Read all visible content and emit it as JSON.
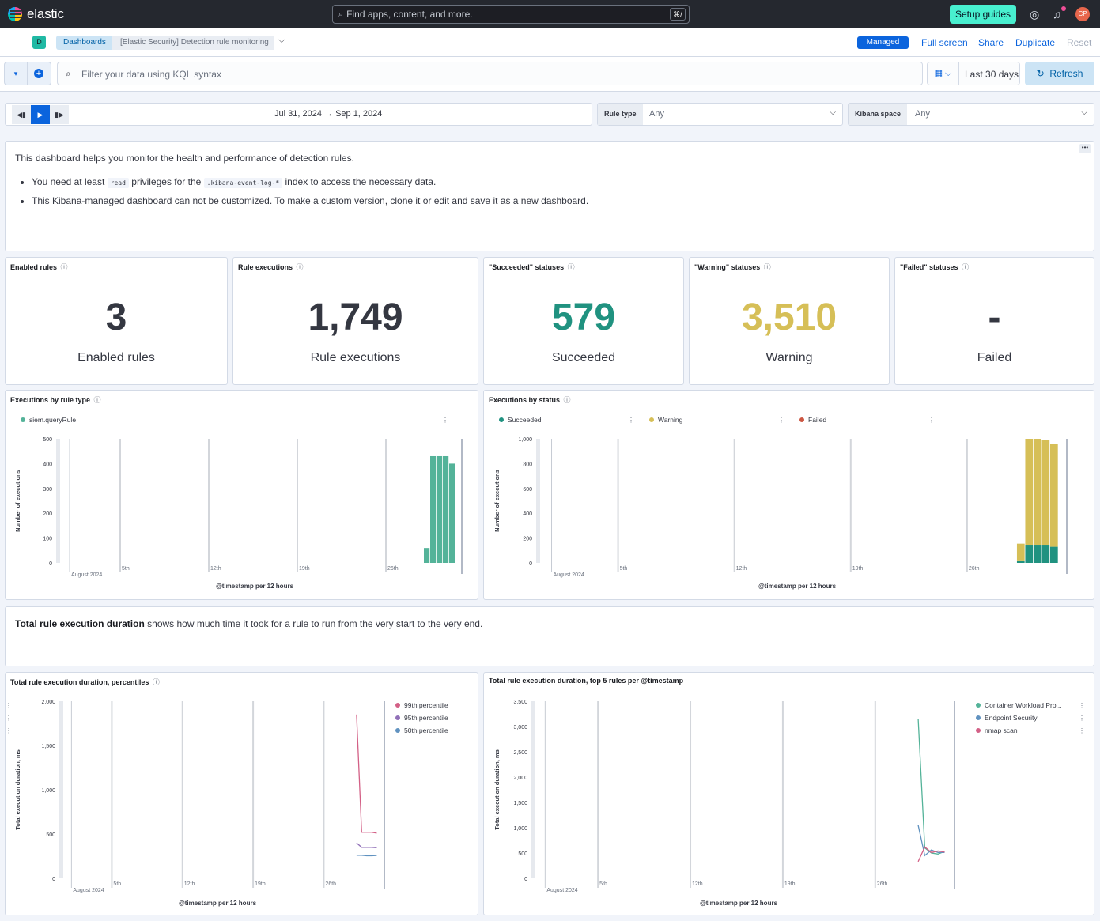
{
  "topbar": {
    "logo_text": "elastic",
    "search_placeholder": "Find apps, content, and more.",
    "search_shortcut": "⌘/",
    "setup_guides": "Setup guides",
    "avatar_initials": "CP"
  },
  "header": {
    "space_initial": "D",
    "breadcrumbs": [
      "Dashboards",
      "[Elastic Security] Detection rule monitoring"
    ],
    "managed_badge": "Managed",
    "actions": [
      "Full screen",
      "Share",
      "Duplicate",
      "Reset"
    ]
  },
  "query": {
    "placeholder": "Filter your data using KQL syntax",
    "date_range": "Last 30 days",
    "refresh": "Refresh"
  },
  "controls": {
    "time_start": "Jul 31, 2024",
    "time_end": "Sep 1, 2024",
    "rule_type_label": "Rule type",
    "rule_type_value": "Any",
    "space_label": "Kibana space",
    "space_value": "Any"
  },
  "intro": {
    "line1": "This dashboard helps you monitor the health and performance of detection rules.",
    "bullet1_pre": "You need at least",
    "bullet1_code1": "read",
    "bullet1_mid": "privileges for the",
    "bullet1_code2": ".kibana-event-log-*",
    "bullet1_post": "index to access the necessary data.",
    "bullet2": "This Kibana-managed dashboard can not be customized. To make a custom version, clone it or edit and save it as a new dashboard."
  },
  "metrics": [
    {
      "title": "Enabled rules",
      "value": "3",
      "label": "Enabled rules",
      "color": "#343741"
    },
    {
      "title": "Rule executions",
      "value": "1,749",
      "label": "Rule executions",
      "color": "#343741"
    },
    {
      "title": "\"Succeeded\" statuses",
      "value": "579",
      "label": "Succeeded",
      "color": "#209280"
    },
    {
      "title": "\"Warning\" statuses",
      "value": "3,510",
      "label": "Warning",
      "color": "#d6bf57"
    },
    {
      "title": "\"Failed\" statuses",
      "value": "-",
      "label": "Failed",
      "color": "#343741"
    }
  ],
  "description": {
    "bold": "Total rule execution duration",
    "rest": "shows how much time it took for a rule to run from the very start to the very end."
  },
  "chart_data": [
    {
      "type": "bar",
      "title": "Executions by rule type",
      "ylabel": "Number of executions",
      "xlabel": "@timestamp per 12 hours",
      "ylim": [
        0,
        500
      ],
      "yticks": [
        "0",
        "100",
        "200",
        "300",
        "400",
        "500"
      ],
      "xticks": [
        "August 2024",
        "5th",
        "12th",
        "19th",
        "26th"
      ],
      "x": [
        "2024-08-29 00:00",
        "2024-08-29 12:00",
        "2024-08-30 00:00",
        "2024-08-30 12:00",
        "2024-08-31 00:00"
      ],
      "series": [
        {
          "name": "siem.queryRule",
          "color": "#54b399",
          "values": [
            60,
            430,
            430,
            430,
            400
          ]
        }
      ]
    },
    {
      "type": "bar",
      "stacked": true,
      "title": "Executions by status",
      "ylabel": "Number of executions",
      "xlabel": "@timestamp per 12 hours",
      "ylim": [
        0,
        1000
      ],
      "yticks": [
        "0",
        "200",
        "400",
        "600",
        "800",
        "1,000"
      ],
      "xticks": [
        "August 2024",
        "5th",
        "12th",
        "19th",
        "26th"
      ],
      "x": [
        "2024-08-29 00:00",
        "2024-08-29 12:00",
        "2024-08-30 00:00",
        "2024-08-30 12:00",
        "2024-08-31 00:00"
      ],
      "series": [
        {
          "name": "Succeeded",
          "color": "#209280",
          "values": [
            20,
            140,
            140,
            140,
            130
          ]
        },
        {
          "name": "Warning",
          "color": "#d6bf57",
          "values": [
            135,
            860,
            860,
            850,
            830
          ]
        },
        {
          "name": "Failed",
          "color": "#cc5642",
          "values": [
            0,
            0,
            0,
            0,
            0
          ]
        }
      ]
    },
    {
      "type": "line",
      "title": "Total rule execution duration, percentiles",
      "ylabel": "Total execution duration, ms",
      "xlabel": "@timestamp per 12 hours",
      "ylim": [
        0,
        2000
      ],
      "yticks": [
        "0",
        "500",
        "1,000",
        "1,500",
        "2,000"
      ],
      "xticks": [
        "August 2024",
        "5th",
        "12th",
        "19th",
        "26th"
      ],
      "x": [
        "2024-08-29 00:00",
        "2024-08-29 12:00",
        "2024-08-30 00:00",
        "2024-08-30 12:00",
        "2024-08-31 00:00"
      ],
      "series": [
        {
          "name": "99th percentile",
          "color": "#d36086",
          "values": [
            1850,
            520,
            520,
            520,
            510
          ]
        },
        {
          "name": "95th percentile",
          "color": "#9170b8",
          "values": [
            400,
            350,
            350,
            350,
            345
          ]
        },
        {
          "name": "50th percentile",
          "color": "#6092c0",
          "values": [
            260,
            260,
            255,
            255,
            258
          ]
        }
      ]
    },
    {
      "type": "line",
      "title": "Total rule execution duration, top 5 rules per @timestamp",
      "ylabel": "Total execution duration, ms",
      "xlabel": "@timestamp per 12 hours",
      "ylim": [
        0,
        3500
      ],
      "yticks": [
        "0",
        "500",
        "1,000",
        "1,500",
        "2,000",
        "2,500",
        "3,000",
        "3,500"
      ],
      "xticks": [
        "August 2024",
        "5th",
        "12th",
        "19th",
        "26th"
      ],
      "x": [
        "2024-08-29 00:00",
        "2024-08-29 12:00",
        "2024-08-30 00:00",
        "2024-08-30 12:00",
        "2024-08-31 00:00"
      ],
      "series": [
        {
          "name": "Container Workload Pro...",
          "color": "#54b399",
          "values": [
            3150,
            600,
            500,
            480,
            530
          ]
        },
        {
          "name": "Endpoint Security",
          "color": "#6092c0",
          "values": [
            1050,
            450,
            560,
            510,
            510
          ]
        },
        {
          "name": "nmap scan",
          "color": "#d36086",
          "values": [
            330,
            620,
            510,
            540,
            520
          ]
        }
      ]
    }
  ]
}
